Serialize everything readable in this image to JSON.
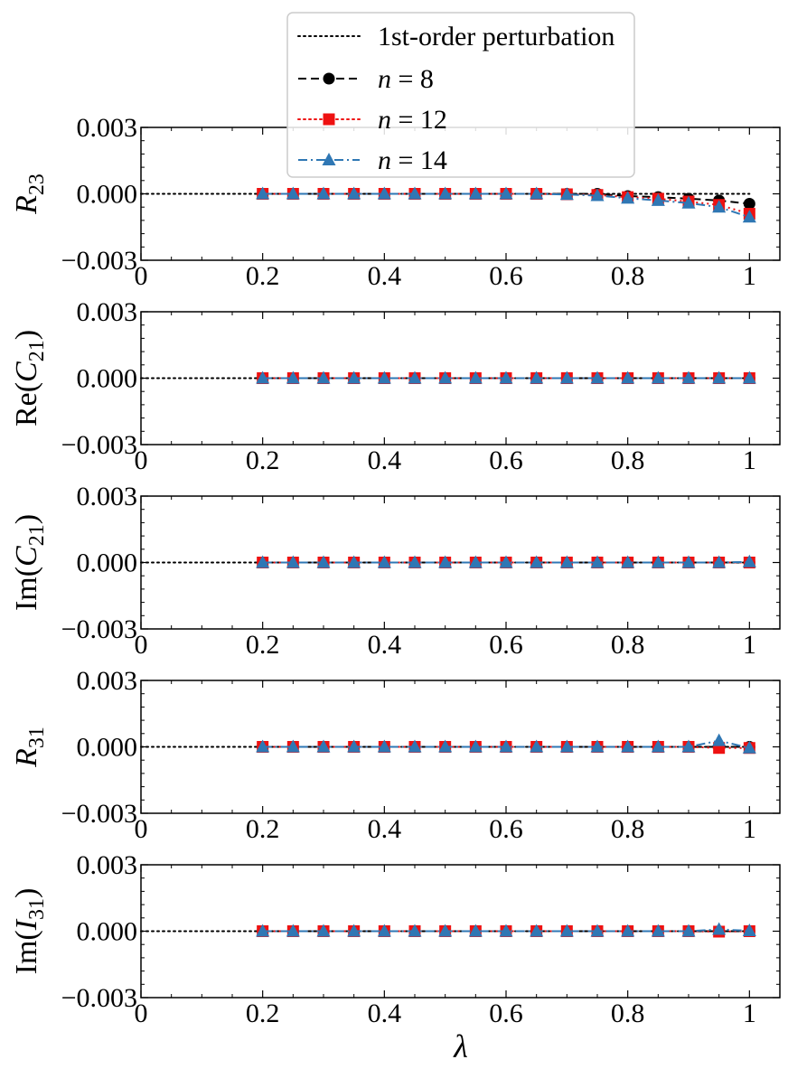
{
  "chart_data": {
    "type": "line",
    "xlabel": "λ",
    "xlim": [
      0,
      1.05
    ],
    "x_ticks": [
      0,
      0.2,
      0.4,
      0.6,
      0.8,
      1
    ],
    "x_tick_labels": [
      "0",
      "0.2",
      "0.4",
      "0.6",
      "0.8",
      "1"
    ],
    "y_ticks": [
      -0.003,
      0,
      0.003
    ],
    "y_tick_labels": [
      "−0.003",
      "0.000",
      "0.003"
    ],
    "ylim": [
      -0.003,
      0.003
    ],
    "legend": [
      {
        "label": "1st-order perturbation",
        "color": "#000000",
        "style": "dotted",
        "marker": "none"
      },
      {
        "label_var": "n",
        "label_rest": " = 8",
        "color": "#000000",
        "style": "dashed",
        "marker": "circle"
      },
      {
        "label_var": "n",
        "label_rest": " = 12",
        "color": "#ee1111",
        "style": "dotted",
        "marker": "square"
      },
      {
        "label_var": "n",
        "label_rest": " = 14",
        "color": "#2f77b4",
        "style": "dashdot",
        "marker": "triangle"
      }
    ],
    "panels": [
      {
        "ylabel_main": "R",
        "ylabel_sub": "23",
        "ylabel_prefix": "",
        "ylabel_suffix": "",
        "perturbation": {
          "x": [
            0,
            1
          ],
          "y": [
            0,
            0
          ]
        },
        "series": [
          {
            "name": "n=8",
            "x": [
              0.2,
              0.25,
              0.3,
              0.35,
              0.4,
              0.45,
              0.5,
              0.55,
              0.6,
              0.65,
              0.7,
              0.75,
              0.8,
              0.85,
              0.9,
              0.95,
              1.0
            ],
            "y": [
              0,
              0,
              0,
              0,
              0,
              0,
              0,
              0,
              0,
              0,
              0,
              0,
              -0.0001,
              -0.00015,
              -0.00022,
              -0.0003,
              -0.00045
            ]
          },
          {
            "name": "n=12",
            "x": [
              0.2,
              0.25,
              0.3,
              0.35,
              0.4,
              0.45,
              0.5,
              0.55,
              0.6,
              0.65,
              0.7,
              0.75,
              0.8,
              0.85,
              0.9,
              0.95,
              1.0
            ],
            "y": [
              0,
              0,
              0,
              0,
              0,
              0,
              0,
              0,
              0,
              0,
              -2e-05,
              -5e-05,
              -0.00015,
              -0.00022,
              -0.00035,
              -0.0005,
              -0.0009
            ]
          },
          {
            "name": "n=14",
            "x": [
              0.2,
              0.25,
              0.3,
              0.35,
              0.4,
              0.45,
              0.5,
              0.55,
              0.6,
              0.65,
              0.7,
              0.75,
              0.8,
              0.85,
              0.9,
              0.95,
              1.0
            ],
            "y": [
              0,
              0,
              0,
              0,
              0,
              0,
              0,
              0,
              0,
              0,
              -3e-05,
              -8e-05,
              -0.0002,
              -0.0003,
              -0.00042,
              -0.0006,
              -0.00105
            ]
          }
        ]
      },
      {
        "ylabel_main": "C",
        "ylabel_sub": "21",
        "ylabel_prefix": "Re(",
        "ylabel_suffix": ")",
        "perturbation": {
          "x": [
            0,
            1
          ],
          "y": [
            0,
            0
          ]
        },
        "series": [
          {
            "name": "n=8",
            "x": [
              0.2,
              0.25,
              0.3,
              0.35,
              0.4,
              0.45,
              0.5,
              0.55,
              0.6,
              0.65,
              0.7,
              0.75,
              0.8,
              0.85,
              0.9,
              0.95,
              1.0
            ],
            "y": [
              0,
              0,
              0,
              0,
              0,
              0,
              0,
              0,
              0,
              0,
              0,
              0,
              0,
              0,
              0,
              0,
              0
            ]
          },
          {
            "name": "n=12",
            "x": [
              0.2,
              0.25,
              0.3,
              0.35,
              0.4,
              0.45,
              0.5,
              0.55,
              0.6,
              0.65,
              0.7,
              0.75,
              0.8,
              0.85,
              0.9,
              0.95,
              1.0
            ],
            "y": [
              0,
              0,
              0,
              0,
              0,
              0,
              0,
              0,
              0,
              0,
              0,
              0,
              0,
              0,
              0,
              0,
              0
            ]
          },
          {
            "name": "n=14",
            "x": [
              0.2,
              0.25,
              0.3,
              0.35,
              0.4,
              0.45,
              0.5,
              0.55,
              0.6,
              0.65,
              0.7,
              0.75,
              0.8,
              0.85,
              0.9,
              0.95,
              1.0
            ],
            "y": [
              0,
              0,
              0,
              0,
              0,
              0,
              0,
              0,
              0,
              0,
              0,
              0,
              0,
              0,
              0,
              0,
              0
            ]
          }
        ]
      },
      {
        "ylabel_main": "C",
        "ylabel_sub": "21",
        "ylabel_prefix": "Im(",
        "ylabel_suffix": ")",
        "perturbation": {
          "x": [
            0,
            1
          ],
          "y": [
            0,
            0
          ]
        },
        "series": [
          {
            "name": "n=8",
            "x": [
              0.2,
              0.25,
              0.3,
              0.35,
              0.4,
              0.45,
              0.5,
              0.55,
              0.6,
              0.65,
              0.7,
              0.75,
              0.8,
              0.85,
              0.9,
              0.95,
              1.0
            ],
            "y": [
              0,
              0,
              0,
              0,
              0,
              0,
              0,
              0,
              0,
              0,
              0,
              0,
              0,
              0,
              0,
              0,
              0
            ]
          },
          {
            "name": "n=12",
            "x": [
              0.2,
              0.25,
              0.3,
              0.35,
              0.4,
              0.45,
              0.5,
              0.55,
              0.6,
              0.65,
              0.7,
              0.75,
              0.8,
              0.85,
              0.9,
              0.95,
              1.0
            ],
            "y": [
              0,
              0,
              0,
              0,
              0,
              0,
              0,
              0,
              0,
              0,
              0,
              0,
              0,
              0,
              0,
              0,
              0
            ]
          },
          {
            "name": "n=14",
            "x": [
              0.2,
              0.25,
              0.3,
              0.35,
              0.4,
              0.45,
              0.5,
              0.55,
              0.6,
              0.65,
              0.7,
              0.75,
              0.8,
              0.85,
              0.9,
              0.95,
              1.0
            ],
            "y": [
              0,
              0,
              0,
              0,
              0,
              0,
              0,
              0,
              0,
              0,
              0,
              0,
              0,
              0,
              0,
              0,
              3e-05
            ]
          }
        ]
      },
      {
        "ylabel_main": "R",
        "ylabel_sub": "31",
        "ylabel_prefix": "",
        "ylabel_suffix": "",
        "perturbation": {
          "x": [
            0,
            1
          ],
          "y": [
            0,
            0
          ]
        },
        "series": [
          {
            "name": "n=8",
            "x": [
              0.2,
              0.25,
              0.3,
              0.35,
              0.4,
              0.45,
              0.5,
              0.55,
              0.6,
              0.65,
              0.7,
              0.75,
              0.8,
              0.85,
              0.9,
              0.95,
              1.0
            ],
            "y": [
              0,
              0,
              0,
              0,
              0,
              0,
              0,
              0,
              0,
              0,
              0,
              0,
              0,
              0,
              0,
              0,
              0
            ]
          },
          {
            "name": "n=12",
            "x": [
              0.2,
              0.25,
              0.3,
              0.35,
              0.4,
              0.45,
              0.5,
              0.55,
              0.6,
              0.65,
              0.7,
              0.75,
              0.8,
              0.85,
              0.9,
              0.95,
              1.0
            ],
            "y": [
              0,
              0,
              0,
              0,
              0,
              0,
              0,
              0,
              0,
              0,
              0,
              0,
              0,
              0,
              0,
              -5e-05,
              -5e-05
            ]
          },
          {
            "name": "n=14",
            "x": [
              0.2,
              0.25,
              0.3,
              0.35,
              0.4,
              0.45,
              0.5,
              0.55,
              0.6,
              0.65,
              0.7,
              0.75,
              0.8,
              0.85,
              0.9,
              0.95,
              1.0
            ],
            "y": [
              0,
              0,
              0,
              0,
              0,
              0,
              0,
              0,
              0,
              0,
              0,
              0,
              0,
              0,
              0,
              0.00028,
              -5e-05
            ]
          }
        ]
      },
      {
        "ylabel_main": "I",
        "ylabel_sub": "31",
        "ylabel_prefix": "Im(",
        "ylabel_suffix": ")",
        "perturbation": {
          "x": [
            0,
            1
          ],
          "y": [
            0,
            0
          ]
        },
        "series": [
          {
            "name": "n=8",
            "x": [
              0.2,
              0.25,
              0.3,
              0.35,
              0.4,
              0.45,
              0.5,
              0.55,
              0.6,
              0.65,
              0.7,
              0.75,
              0.8,
              0.85,
              0.9,
              0.95,
              1.0
            ],
            "y": [
              0,
              0,
              0,
              0,
              0,
              0,
              0,
              0,
              0,
              0,
              0,
              0,
              0,
              0,
              0,
              0,
              0
            ]
          },
          {
            "name": "n=12",
            "x": [
              0.2,
              0.25,
              0.3,
              0.35,
              0.4,
              0.45,
              0.5,
              0.55,
              0.6,
              0.65,
              0.7,
              0.75,
              0.8,
              0.85,
              0.9,
              0.95,
              1.0
            ],
            "y": [
              0,
              0,
              0,
              0,
              0,
              0,
              0,
              0,
              0,
              0,
              0,
              0,
              0,
              0,
              0,
              -2e-05,
              0
            ]
          },
          {
            "name": "n=14",
            "x": [
              0.2,
              0.25,
              0.3,
              0.35,
              0.4,
              0.45,
              0.5,
              0.55,
              0.6,
              0.65,
              0.7,
              0.75,
              0.8,
              0.85,
              0.9,
              0.95,
              1.0
            ],
            "y": [
              0,
              0,
              0,
              0,
              0,
              0,
              0,
              0,
              0,
              0,
              0,
              0,
              0,
              0,
              0,
              8e-05,
              2e-05
            ]
          }
        ]
      }
    ]
  }
}
